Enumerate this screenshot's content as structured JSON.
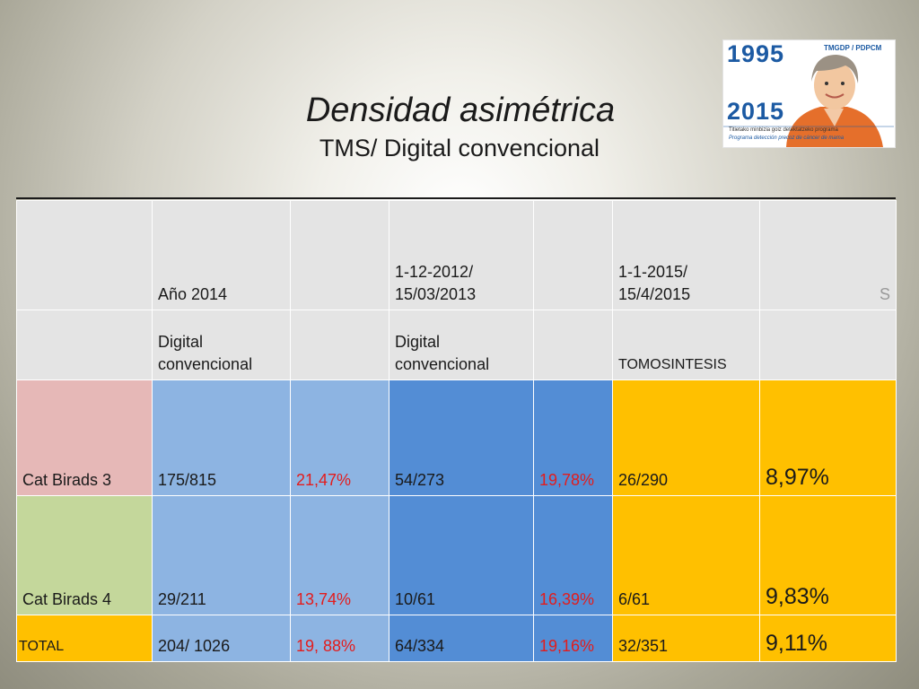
{
  "title": "Densidad asimétrica",
  "subtitle": "TMS/ Digital  convencional",
  "logo": {
    "year_top": "1995",
    "year_bottom": "2015",
    "org": "TMGDP / PDPCM",
    "line1": "Titietako minbizia goiz detektatzeko programa",
    "line2": "Programa detección precoz de cáncer de mama"
  },
  "table": {
    "header": {
      "period1": "Año 2014",
      "period2": "1-12-2012/ 15/03/2013",
      "period3": "1-1-2015/ 15/4/2015",
      "period3_tail": "S"
    },
    "method": {
      "m1": "Digital convencional",
      "m2": "Digital convencional",
      "m3": "TOMOSINTESIS"
    },
    "rows": [
      {
        "label": "Cat Birads 3",
        "c1": "175/815",
        "p1": "21,47%",
        "c2": "54/273",
        "p2": "19,78%",
        "c3": "26/290",
        "p3": "8,97%"
      },
      {
        "label": "Cat Birads 4",
        "c1": "29/211",
        "p1": "13,74%",
        "c2": "10/61",
        "p2": "16,39%",
        "c3": "6/61",
        "p3": "9,83%"
      },
      {
        "label": "TOTAL",
        "c1": "204/ 1026",
        "p1": "19, 88%",
        "c2": "64/334",
        "p2": "19,16%",
        "c3": "32/351",
        "p3": "9,11%"
      }
    ]
  },
  "colors": {
    "pink": "#e6b8b7",
    "green": "#c4d79b",
    "gold": "#ffc000",
    "light_blue": "#8db4e2",
    "medium_blue": "#538dd5",
    "red_text": "#e31c1c"
  }
}
